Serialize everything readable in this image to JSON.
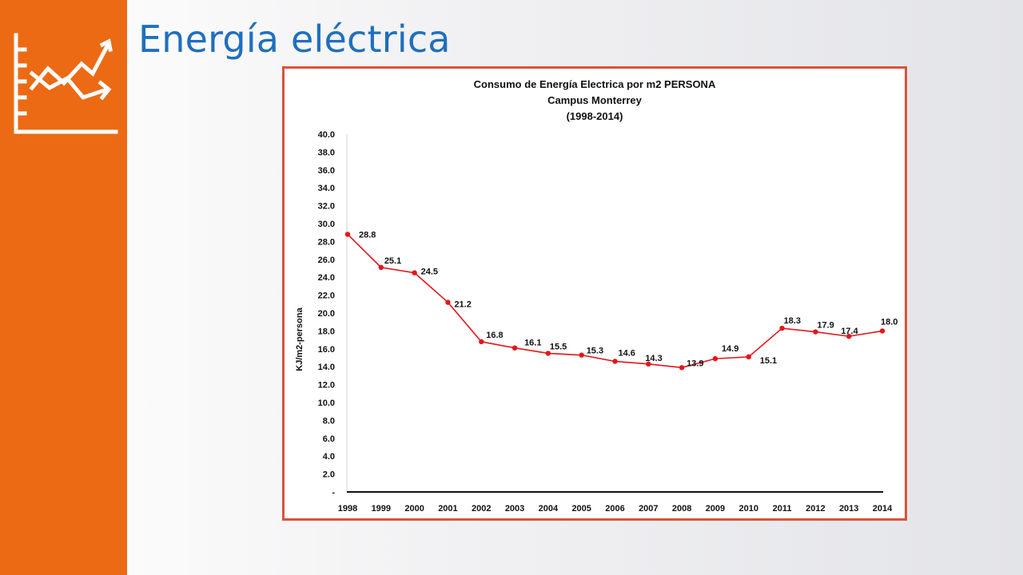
{
  "slide": {
    "title": "Energía eléctrica",
    "icon": "line-chart-trend-icon",
    "colors": {
      "accent_orange": "#ec6a13",
      "title_blue": "#1f6fbf",
      "bottom_bar": "#0b3fa0",
      "frame": "#d9533b"
    }
  },
  "chart_data": {
    "type": "line",
    "title": [
      "Consumo de Energía Electrica por m2 PERSONA",
      "Campus Monterrey",
      "(1998-2014)"
    ],
    "ylabel": "KJ/m2-persona",
    "xlabel": "",
    "categories": [
      "1998",
      "1999",
      "2000",
      "2001",
      "2002",
      "2003",
      "2004",
      "2005",
      "2006",
      "2007",
      "2008",
      "2009",
      "2010",
      "2011",
      "2012",
      "2013",
      "2014"
    ],
    "series": [
      {
        "values": [
          28.8,
          25.1,
          24.5,
          21.2,
          16.8,
          16.1,
          15.5,
          15.3,
          14.6,
          14.3,
          13.9,
          14.9,
          15.1,
          18.3,
          17.9,
          17.4,
          18.0
        ],
        "color": "#e3161b"
      }
    ],
    "data_labels": [
      "28.8",
      "25.1",
      "24.5",
      "21.2",
      "16.8",
      "16.1",
      "15.5",
      "15.3",
      "14.6",
      "14.3",
      "13.9",
      "14.9",
      "15.1",
      "18.3",
      "17.9",
      "17.4",
      "18.0"
    ],
    "ylim": [
      0,
      40
    ],
    "y_ticks": [
      "-",
      "2.0",
      "4.0",
      "6.0",
      "8.0",
      "10.0",
      "12.0",
      "14.0",
      "16.0",
      "18.0",
      "20.0",
      "22.0",
      "24.0",
      "26.0",
      "28.0",
      "30.0",
      "32.0",
      "34.0",
      "36.0",
      "38.0",
      "40.0"
    ],
    "grid": false,
    "legend": "none"
  }
}
